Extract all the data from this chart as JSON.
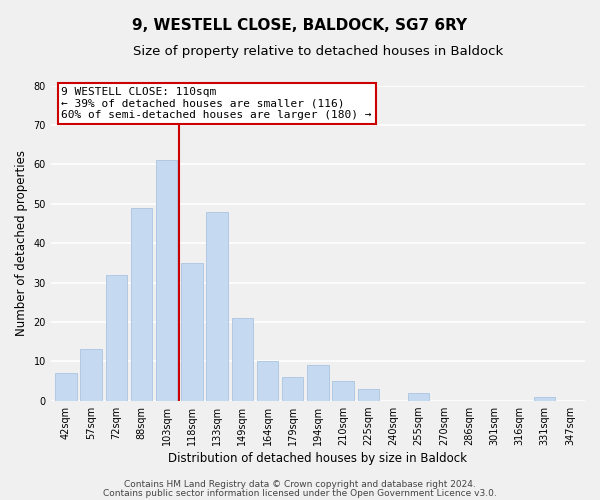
{
  "title1": "9, WESTELL CLOSE, BALDOCK, SG7 6RY",
  "title2": "Size of property relative to detached houses in Baldock",
  "xlabel": "Distribution of detached houses by size in Baldock",
  "ylabel": "Number of detached properties",
  "bar_labels": [
    "42sqm",
    "57sqm",
    "72sqm",
    "88sqm",
    "103sqm",
    "118sqm",
    "133sqm",
    "149sqm",
    "164sqm",
    "179sqm",
    "194sqm",
    "210sqm",
    "225sqm",
    "240sqm",
    "255sqm",
    "270sqm",
    "286sqm",
    "301sqm",
    "316sqm",
    "331sqm",
    "347sqm"
  ],
  "bar_values": [
    7,
    13,
    32,
    49,
    61,
    35,
    48,
    21,
    10,
    6,
    9,
    5,
    3,
    0,
    2,
    0,
    0,
    0,
    0,
    1,
    0
  ],
  "bar_color": "#c5d9f1",
  "bar_edge_color": "#aac4e0",
  "vline_x_idx": 4,
  "vline_color": "#cc0000",
  "annotation_lines": [
    "9 WESTELL CLOSE: 110sqm",
    "← 39% of detached houses are smaller (116)",
    "60% of semi-detached houses are larger (180) →"
  ],
  "ylim": [
    0,
    80
  ],
  "yticks": [
    0,
    10,
    20,
    30,
    40,
    50,
    60,
    70,
    80
  ],
  "footer1": "Contains HM Land Registry data © Crown copyright and database right 2024.",
  "footer2": "Contains public sector information licensed under the Open Government Licence v3.0.",
  "bg_color": "#f0f0f0",
  "plot_bg_color": "#f0f0f0",
  "grid_color": "#ffffff",
  "title_fontsize": 11,
  "subtitle_fontsize": 9.5,
  "axis_label_fontsize": 8.5,
  "tick_fontsize": 7,
  "ann_fontsize": 8,
  "footer_fontsize": 6.5
}
